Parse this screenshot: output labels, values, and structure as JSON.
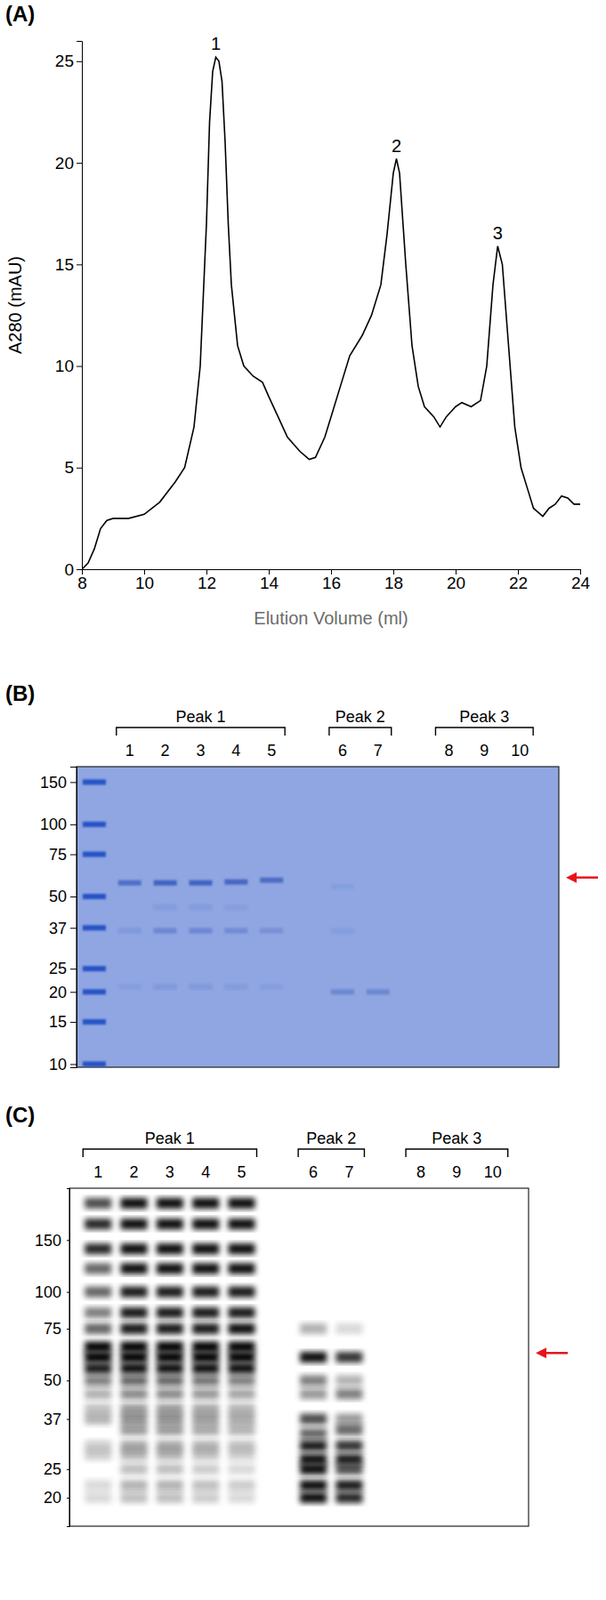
{
  "chart_data": [
    {
      "type": "line",
      "title": "(A)",
      "x_label": "Elution Volume (ml)",
      "y_label": "A280 (mAU)",
      "color": "#000000",
      "xlim": [
        8,
        24
      ],
      "xticks": [
        8,
        10,
        12,
        14,
        16,
        18,
        20,
        22,
        24
      ],
      "ylim": [
        0,
        26
      ],
      "yticks": [
        0,
        5,
        10,
        15,
        20,
        25
      ],
      "grid": false,
      "x": [
        8.0,
        8.2,
        8.4,
        8.6,
        8.8,
        9.0,
        9.5,
        10.0,
        10.5,
        11.0,
        11.3,
        11.6,
        11.8,
        12.0,
        12.1,
        12.2,
        12.3,
        12.4,
        12.5,
        12.6,
        12.7,
        12.8,
        13.0,
        13.2,
        13.5,
        13.8,
        14.0,
        14.3,
        14.6,
        15.0,
        15.3,
        15.5,
        15.8,
        16.0,
        16.3,
        16.6,
        17.0,
        17.3,
        17.6,
        17.8,
        18.0,
        18.1,
        18.2,
        18.4,
        18.6,
        18.8,
        19.0,
        19.3,
        19.5,
        19.7,
        20.0,
        20.2,
        20.5,
        20.8,
        21.0,
        21.2,
        21.35,
        21.5,
        21.7,
        21.9,
        22.1,
        22.3,
        22.5,
        22.8,
        23.0,
        23.2,
        23.4,
        23.6,
        23.8,
        24.0
      ],
      "values": [
        0,
        0.3,
        1,
        2,
        2.4,
        2.5,
        2.5,
        2.7,
        3.3,
        4.3,
        5,
        7,
        10,
        17,
        22,
        24.5,
        25.2,
        25,
        24,
        21,
        17,
        14,
        11,
        10,
        9.5,
        9.2,
        8.5,
        7.5,
        6.5,
        5.8,
        5.4,
        5.5,
        6.5,
        7.5,
        9,
        10.5,
        11.5,
        12.5,
        14,
        16.5,
        19.5,
        20.2,
        19.5,
        15,
        11,
        9,
        8,
        7.5,
        7,
        7.5,
        8,
        8.2,
        8,
        8.3,
        10,
        14,
        15.9,
        15,
        11,
        7,
        5,
        4,
        3,
        2.6,
        3,
        3.2,
        3.6,
        3.5,
        3.2,
        3.2
      ],
      "annotations": [
        {
          "text": "1",
          "x": 12.3,
          "y": 25.2
        },
        {
          "text": "2",
          "x": 18.1,
          "y": 20.2
        },
        {
          "text": "3",
          "x": 21.35,
          "y": 15.9
        }
      ]
    },
    {
      "type": "gel",
      "title": "(B)",
      "log": "y",
      "ylim": [
        9.7,
        174
      ],
      "yticks": [
        150,
        100,
        75,
        50,
        37,
        25,
        20,
        15,
        10
      ],
      "color": "#2a4db5",
      "arrow": 60,
      "groups": [
        {
          "label": "Peak 1",
          "lanes": [
            {
              "label": "1",
              "bands": [
                {
                  "mw": 57,
                  "intensity": 0.6
                },
                {
                  "mw": 36,
                  "intensity": 0.15
                },
                {
                  "mw": 21,
                  "intensity": 0.08
                }
              ]
            },
            {
              "label": "2",
              "bands": [
                {
                  "mw": 57,
                  "intensity": 0.75
                },
                {
                  "mw": 45,
                  "intensity": 0.12
                },
                {
                  "mw": 36,
                  "intensity": 0.35
                },
                {
                  "mw": 21,
                  "intensity": 0.15
                }
              ]
            },
            {
              "label": "3",
              "bands": [
                {
                  "mw": 57,
                  "intensity": 0.75
                },
                {
                  "mw": 45,
                  "intensity": 0.12
                },
                {
                  "mw": 36,
                  "intensity": 0.35
                },
                {
                  "mw": 21,
                  "intensity": 0.15
                }
              ]
            },
            {
              "label": "4",
              "bands": [
                {
                  "mw": 57.5,
                  "intensity": 0.7
                },
                {
                  "mw": 45,
                  "intensity": 0.1
                },
                {
                  "mw": 36,
                  "intensity": 0.3
                },
                {
                  "mw": 21,
                  "intensity": 0.12
                }
              ]
            },
            {
              "label": "5",
              "bands": [
                {
                  "mw": 58.5,
                  "intensity": 0.65
                },
                {
                  "mw": 36,
                  "intensity": 0.25
                },
                {
                  "mw": 21,
                  "intensity": 0.08
                }
              ]
            }
          ]
        },
        {
          "label": "Peak 2",
          "lanes": [
            {
              "label": "6",
              "bands": [
                {
                  "mw": 55,
                  "intensity": 0.08
                },
                {
                  "mw": 36,
                  "intensity": 0.08
                },
                {
                  "mw": 20,
                  "intensity": 0.35
                }
              ]
            },
            {
              "label": "7",
              "bands": [
                {
                  "mw": 20,
                  "intensity": 0.35
                }
              ]
            }
          ]
        },
        {
          "label": "Peak 3",
          "lanes": [
            {
              "label": "8",
              "bands": []
            },
            {
              "label": "9",
              "bands": []
            },
            {
              "label": "10",
              "bands": []
            }
          ]
        }
      ]
    },
    {
      "type": "blot",
      "title": "(C)",
      "log": "y",
      "ylim": [
        16,
        225
      ],
      "yticks": [
        150,
        100,
        75,
        50,
        37,
        25,
        20
      ],
      "color": "#000000",
      "arrow": 62,
      "groups": [
        {
          "label": "Peak 1",
          "lanes": [
            {
              "label": "1",
              "bands": [
                {
                  "mw": 200,
                  "intensity": 0.7
                },
                {
                  "mw": 170,
                  "intensity": 0.85
                },
                {
                  "mw": 140,
                  "intensity": 0.85
                },
                {
                  "mw": 120,
                  "intensity": 0.6
                },
                {
                  "mw": 100,
                  "intensity": 0.6
                },
                {
                  "mw": 85,
                  "intensity": 0.5
                },
                {
                  "mw": 75,
                  "intensity": 0.6
                },
                {
                  "mw": 65,
                  "intensity": 1
                },
                {
                  "mw": 60,
                  "intensity": 1
                },
                {
                  "mw": 55,
                  "intensity": 0.9
                },
                {
                  "mw": 50,
                  "intensity": 0.5
                },
                {
                  "mw": 45,
                  "intensity": 0.3
                },
                {
                  "mw": 40,
                  "intensity": 0.25
                },
                {
                  "mw": 37,
                  "intensity": 0.3
                },
                {
                  "mw": 30,
                  "intensity": 0.2
                },
                {
                  "mw": 28,
                  "intensity": 0.2
                },
                {
                  "mw": 22,
                  "intensity": 0.15
                },
                {
                  "mw": 20,
                  "intensity": 0.15
                }
              ]
            },
            {
              "label": "2",
              "bands": [
                {
                  "mw": 200,
                  "intensity": 0.95
                },
                {
                  "mw": 170,
                  "intensity": 0.95
                },
                {
                  "mw": 140,
                  "intensity": 0.95
                },
                {
                  "mw": 120,
                  "intensity": 0.95
                },
                {
                  "mw": 100,
                  "intensity": 0.9
                },
                {
                  "mw": 85,
                  "intensity": 0.9
                },
                {
                  "mw": 75,
                  "intensity": 0.9
                },
                {
                  "mw": 65,
                  "intensity": 1
                },
                {
                  "mw": 60,
                  "intensity": 1
                },
                {
                  "mw": 55,
                  "intensity": 0.95
                },
                {
                  "mw": 50,
                  "intensity": 0.6
                },
                {
                  "mw": 45,
                  "intensity": 0.45
                },
                {
                  "mw": 40,
                  "intensity": 0.4
                },
                {
                  "mw": 37,
                  "intensity": 0.45
                },
                {
                  "mw": 34,
                  "intensity": 0.4
                },
                {
                  "mw": 30,
                  "intensity": 0.35
                },
                {
                  "mw": 28,
                  "intensity": 0.3
                },
                {
                  "mw": 25,
                  "intensity": 0.25
                },
                {
                  "mw": 22,
                  "intensity": 0.3
                },
                {
                  "mw": 20,
                  "intensity": 0.25
                }
              ]
            },
            {
              "label": "3",
              "bands": [
                {
                  "mw": 200,
                  "intensity": 0.95
                },
                {
                  "mw": 170,
                  "intensity": 0.95
                },
                {
                  "mw": 140,
                  "intensity": 0.95
                },
                {
                  "mw": 120,
                  "intensity": 0.95
                },
                {
                  "mw": 100,
                  "intensity": 0.9
                },
                {
                  "mw": 85,
                  "intensity": 0.9
                },
                {
                  "mw": 75,
                  "intensity": 0.9
                },
                {
                  "mw": 65,
                  "intensity": 1
                },
                {
                  "mw": 60,
                  "intensity": 1
                },
                {
                  "mw": 55,
                  "intensity": 0.95
                },
                {
                  "mw": 50,
                  "intensity": 0.6
                },
                {
                  "mw": 45,
                  "intensity": 0.45
                },
                {
                  "mw": 40,
                  "intensity": 0.4
                },
                {
                  "mw": 37,
                  "intensity": 0.45
                },
                {
                  "mw": 34,
                  "intensity": 0.4
                },
                {
                  "mw": 30,
                  "intensity": 0.35
                },
                {
                  "mw": 28,
                  "intensity": 0.3
                },
                {
                  "mw": 25,
                  "intensity": 0.25
                },
                {
                  "mw": 22,
                  "intensity": 0.3
                },
                {
                  "mw": 20,
                  "intensity": 0.25
                }
              ]
            },
            {
              "label": "4",
              "bands": [
                {
                  "mw": 200,
                  "intensity": 0.95
                },
                {
                  "mw": 170,
                  "intensity": 0.95
                },
                {
                  "mw": 140,
                  "intensity": 0.95
                },
                {
                  "mw": 120,
                  "intensity": 0.95
                },
                {
                  "mw": 100,
                  "intensity": 0.9
                },
                {
                  "mw": 85,
                  "intensity": 0.9
                },
                {
                  "mw": 75,
                  "intensity": 0.9
                },
                {
                  "mw": 65,
                  "intensity": 1
                },
                {
                  "mw": 60,
                  "intensity": 1
                },
                {
                  "mw": 55,
                  "intensity": 0.95
                },
                {
                  "mw": 50,
                  "intensity": 0.55
                },
                {
                  "mw": 45,
                  "intensity": 0.4
                },
                {
                  "mw": 40,
                  "intensity": 0.35
                },
                {
                  "mw": 37,
                  "intensity": 0.4
                },
                {
                  "mw": 34,
                  "intensity": 0.35
                },
                {
                  "mw": 30,
                  "intensity": 0.3
                },
                {
                  "mw": 28,
                  "intensity": 0.25
                },
                {
                  "mw": 25,
                  "intensity": 0.2
                },
                {
                  "mw": 22,
                  "intensity": 0.25
                },
                {
                  "mw": 20,
                  "intensity": 0.2
                }
              ]
            },
            {
              "label": "5",
              "bands": [
                {
                  "mw": 200,
                  "intensity": 0.95
                },
                {
                  "mw": 170,
                  "intensity": 0.95
                },
                {
                  "mw": 140,
                  "intensity": 0.95
                },
                {
                  "mw": 120,
                  "intensity": 0.95
                },
                {
                  "mw": 100,
                  "intensity": 0.9
                },
                {
                  "mw": 85,
                  "intensity": 0.9
                },
                {
                  "mw": 75,
                  "intensity": 0.95
                },
                {
                  "mw": 65,
                  "intensity": 1
                },
                {
                  "mw": 60,
                  "intensity": 1
                },
                {
                  "mw": 55,
                  "intensity": 0.95
                },
                {
                  "mw": 50,
                  "intensity": 0.5
                },
                {
                  "mw": 45,
                  "intensity": 0.35
                },
                {
                  "mw": 40,
                  "intensity": 0.3
                },
                {
                  "mw": 37,
                  "intensity": 0.35
                },
                {
                  "mw": 34,
                  "intensity": 0.3
                },
                {
                  "mw": 30,
                  "intensity": 0.25
                },
                {
                  "mw": 28,
                  "intensity": 0.2
                },
                {
                  "mw": 25,
                  "intensity": 0.15
                },
                {
                  "mw": 22,
                  "intensity": 0.2
                },
                {
                  "mw": 20,
                  "intensity": 0.15
                }
              ]
            }
          ]
        },
        {
          "label": "Peak 2",
          "lanes": [
            {
              "label": "6",
              "bands": [
                {
                  "mw": 75,
                  "intensity": 0.3
                },
                {
                  "mw": 60,
                  "intensity": 0.95
                },
                {
                  "mw": 50,
                  "intensity": 0.5
                },
                {
                  "mw": 45,
                  "intensity": 0.4
                },
                {
                  "mw": 37,
                  "intensity": 0.7
                },
                {
                  "mw": 33,
                  "intensity": 0.6
                },
                {
                  "mw": 30,
                  "intensity": 0.9
                },
                {
                  "mw": 27,
                  "intensity": 0.95
                },
                {
                  "mw": 25,
                  "intensity": 0.95
                },
                {
                  "mw": 22,
                  "intensity": 0.95
                },
                {
                  "mw": 20,
                  "intensity": 0.95
                }
              ]
            },
            {
              "label": "7",
              "bands": [
                {
                  "mw": 75,
                  "intensity": 0.15
                },
                {
                  "mw": 60,
                  "intensity": 0.8
                },
                {
                  "mw": 50,
                  "intensity": 0.3
                },
                {
                  "mw": 45,
                  "intensity": 0.5
                },
                {
                  "mw": 37,
                  "intensity": 0.4
                },
                {
                  "mw": 34,
                  "intensity": 0.6
                },
                {
                  "mw": 30,
                  "intensity": 0.8
                },
                {
                  "mw": 27,
                  "intensity": 0.9
                },
                {
                  "mw": 25,
                  "intensity": 0.7
                },
                {
                  "mw": 22,
                  "intensity": 0.9
                },
                {
                  "mw": 20,
                  "intensity": 0.85
                }
              ]
            }
          ]
        },
        {
          "label": "Peak 3",
          "lanes": [
            {
              "label": "8",
              "bands": []
            },
            {
              "label": "9",
              "bands": []
            },
            {
              "label": "10",
              "bands": []
            }
          ]
        }
      ]
    }
  ]
}
